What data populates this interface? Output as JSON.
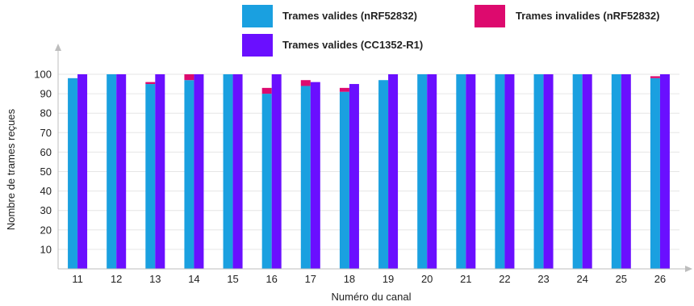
{
  "chart_data": {
    "type": "bar",
    "stacked_series": "Trames invalides (nRF52832) stacked on Trames valides (nRF52832)",
    "categories": [
      "11",
      "12",
      "13",
      "14",
      "15",
      "16",
      "17",
      "18",
      "19",
      "20",
      "21",
      "22",
      "23",
      "24",
      "25",
      "26"
    ],
    "series": [
      {
        "name": "Trames valides (nRF52832)",
        "color": "#1aa0e0",
        "values": [
          98,
          100,
          95,
          97,
          100,
          90,
          94,
          91,
          97,
          100,
          100,
          100,
          100,
          100,
          100,
          98
        ]
      },
      {
        "name": "Trames invalides (nRF52832)",
        "color": "#dd0a6e",
        "values": [
          0,
          0,
          1,
          3,
          0,
          3,
          3,
          2,
          0,
          0,
          0,
          0,
          0,
          0,
          0,
          1
        ]
      },
      {
        "name": "Trames valides (CC1352-R1)",
        "color": "#6a0fff",
        "values": [
          100,
          100,
          100,
          100,
          100,
          100,
          96,
          95,
          100,
          100,
          100,
          100,
          100,
          100,
          100,
          100
        ]
      }
    ],
    "xlabel": "Numéro du canal",
    "ylabel": "Nombre de trames reçues",
    "ylim": [
      0,
      100
    ],
    "yticks": [
      10,
      20,
      30,
      40,
      50,
      60,
      70,
      80,
      90,
      100
    ],
    "grid": true,
    "legend_position": "top"
  }
}
